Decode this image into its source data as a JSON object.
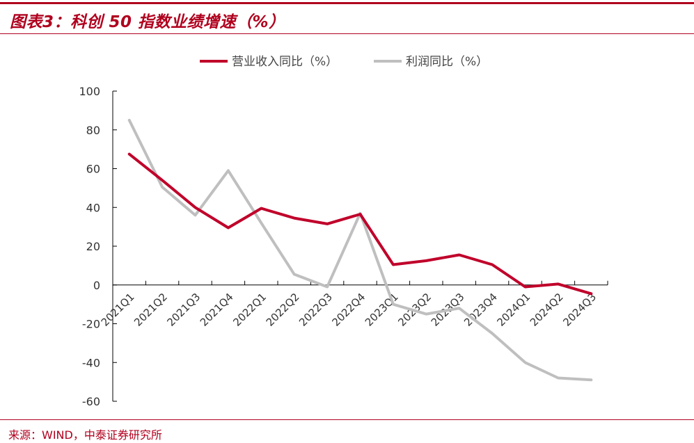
{
  "header": {
    "title": "图表3：科创 50 指数业绩增速（%）"
  },
  "footer": {
    "source": "来源：WIND，中泰证券研究所"
  },
  "chart_data": {
    "type": "line",
    "title": "图表3：科创 50 指数业绩增速（%）",
    "xlabel": "",
    "ylabel": "",
    "categories": [
      "2021Q1",
      "2021Q2",
      "2021Q3",
      "2021Q4",
      "2022Q1",
      "2022Q2",
      "2022Q3",
      "2022Q4",
      "2023Q1",
      "2023Q2",
      "2023Q3",
      "2023Q4",
      "2024Q1",
      "2024Q2",
      "2024Q3"
    ],
    "ylim": [
      -60,
      100
    ],
    "yticks": [
      100,
      80,
      60,
      40,
      20,
      0,
      -20,
      -40,
      -60
    ],
    "grid": false,
    "legend_position": "top-center",
    "series": [
      {
        "name": "营业收入同比（%）",
        "color": "#c0002a",
        "values": [
          67.5,
          54,
          40,
          29.5,
          39.5,
          34.5,
          31.5,
          36.5,
          10.5,
          12.5,
          15.5,
          10.5,
          -1,
          0.5,
          -4.5
        ]
      },
      {
        "name": "利润同比（%）",
        "color": "#bfbfbf",
        "values": [
          85,
          50.5,
          36,
          59,
          32,
          5.5,
          -1,
          37,
          -10,
          -15,
          -12,
          -25,
          -40,
          -48,
          -49
        ]
      }
    ]
  }
}
